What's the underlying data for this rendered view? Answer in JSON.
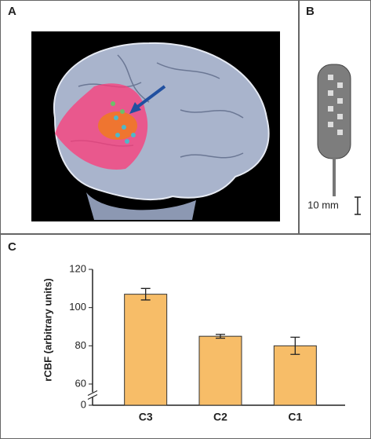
{
  "panels": {
    "a": "A",
    "b": "B",
    "c": "C"
  },
  "scale_bar": "10 mm",
  "chart_data": {
    "type": "bar",
    "ylabel": "rCBF (arbitrary units)",
    "categories": [
      "C3",
      "C2",
      "C1"
    ],
    "values": [
      107,
      85,
      80
    ],
    "errors": [
      3,
      1,
      4.5
    ],
    "color": "#f7bd68",
    "ylim": [
      0,
      120
    ],
    "yticks": [
      0,
      60,
      80,
      100,
      120
    ],
    "axis_break": [
      0,
      60
    ]
  }
}
